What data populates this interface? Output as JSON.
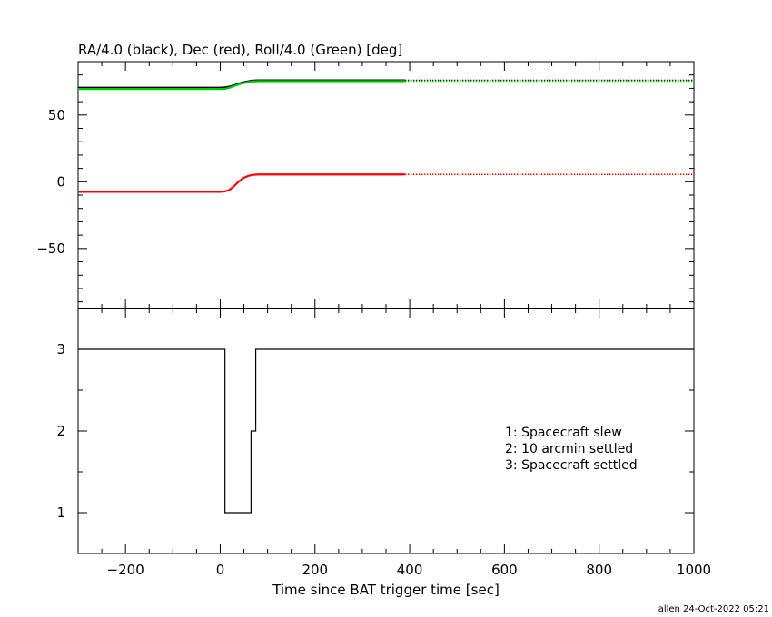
{
  "chart_data": [
    {
      "type": "line",
      "title": "RA/4.0 (black), Dec (red), Roll/4.0 (Green) [deg]",
      "xlim": [
        -300,
        1000
      ],
      "ylim": [
        -95,
        90
      ],
      "yticks": [
        -50,
        0,
        50
      ],
      "grid": false,
      "series": [
        {
          "color": "#000000",
          "x": [
            -300,
            0,
            10,
            20,
            30,
            40,
            50,
            60,
            70,
            80,
            390
          ],
          "y": [
            70.5,
            70.5,
            70.7,
            71.3,
            72.4,
            73.6,
            74.6,
            75.3,
            75.8,
            76.0,
            76.0
          ],
          "dotted_x": [
            390,
            1000
          ],
          "dotted_y": [
            76.0,
            76.0
          ]
        },
        {
          "color": "#00cc00",
          "x": [
            -300,
            0,
            10,
            20,
            30,
            40,
            50,
            60,
            70,
            80,
            390
          ],
          "y": [
            69.5,
            69.5,
            69.7,
            70.5,
            71.8,
            73.0,
            74.0,
            74.8,
            75.2,
            75.4,
            75.4
          ],
          "dotted_x": [
            390,
            1000
          ],
          "dotted_y": [
            75.4,
            75.4
          ]
        },
        {
          "color": "#ff0000",
          "x": [
            -300,
            0,
            10,
            20,
            30,
            40,
            50,
            60,
            70,
            80,
            390
          ],
          "y": [
            -7.5,
            -7.5,
            -7.2,
            -6.0,
            -3.0,
            0.5,
            3.0,
            4.5,
            5.2,
            5.5,
            5.5
          ],
          "dotted_x": [
            390,
            1000
          ],
          "dotted_y": [
            5.5,
            5.5
          ]
        }
      ]
    },
    {
      "type": "line",
      "xlabel": "Time since BAT trigger time [sec]",
      "xlim": [
        -300,
        1000
      ],
      "ylim": [
        0.5,
        3.5
      ],
      "yticks": [
        1,
        2,
        3
      ],
      "xticks": [
        -200,
        0,
        200,
        400,
        600,
        800,
        1000
      ],
      "grid": false,
      "series": [
        {
          "color": "#000000",
          "step": true,
          "x": [
            -300,
            10,
            65,
            75,
            1000
          ],
          "y": [
            3,
            1,
            2,
            3,
            3
          ]
        }
      ],
      "legend": [
        "1: Spacecraft slew",
        "2: 10 arcmin settled",
        "3: Spacecraft settled"
      ]
    }
  ],
  "footer": "allen 24-Oct-2022 05:21"
}
